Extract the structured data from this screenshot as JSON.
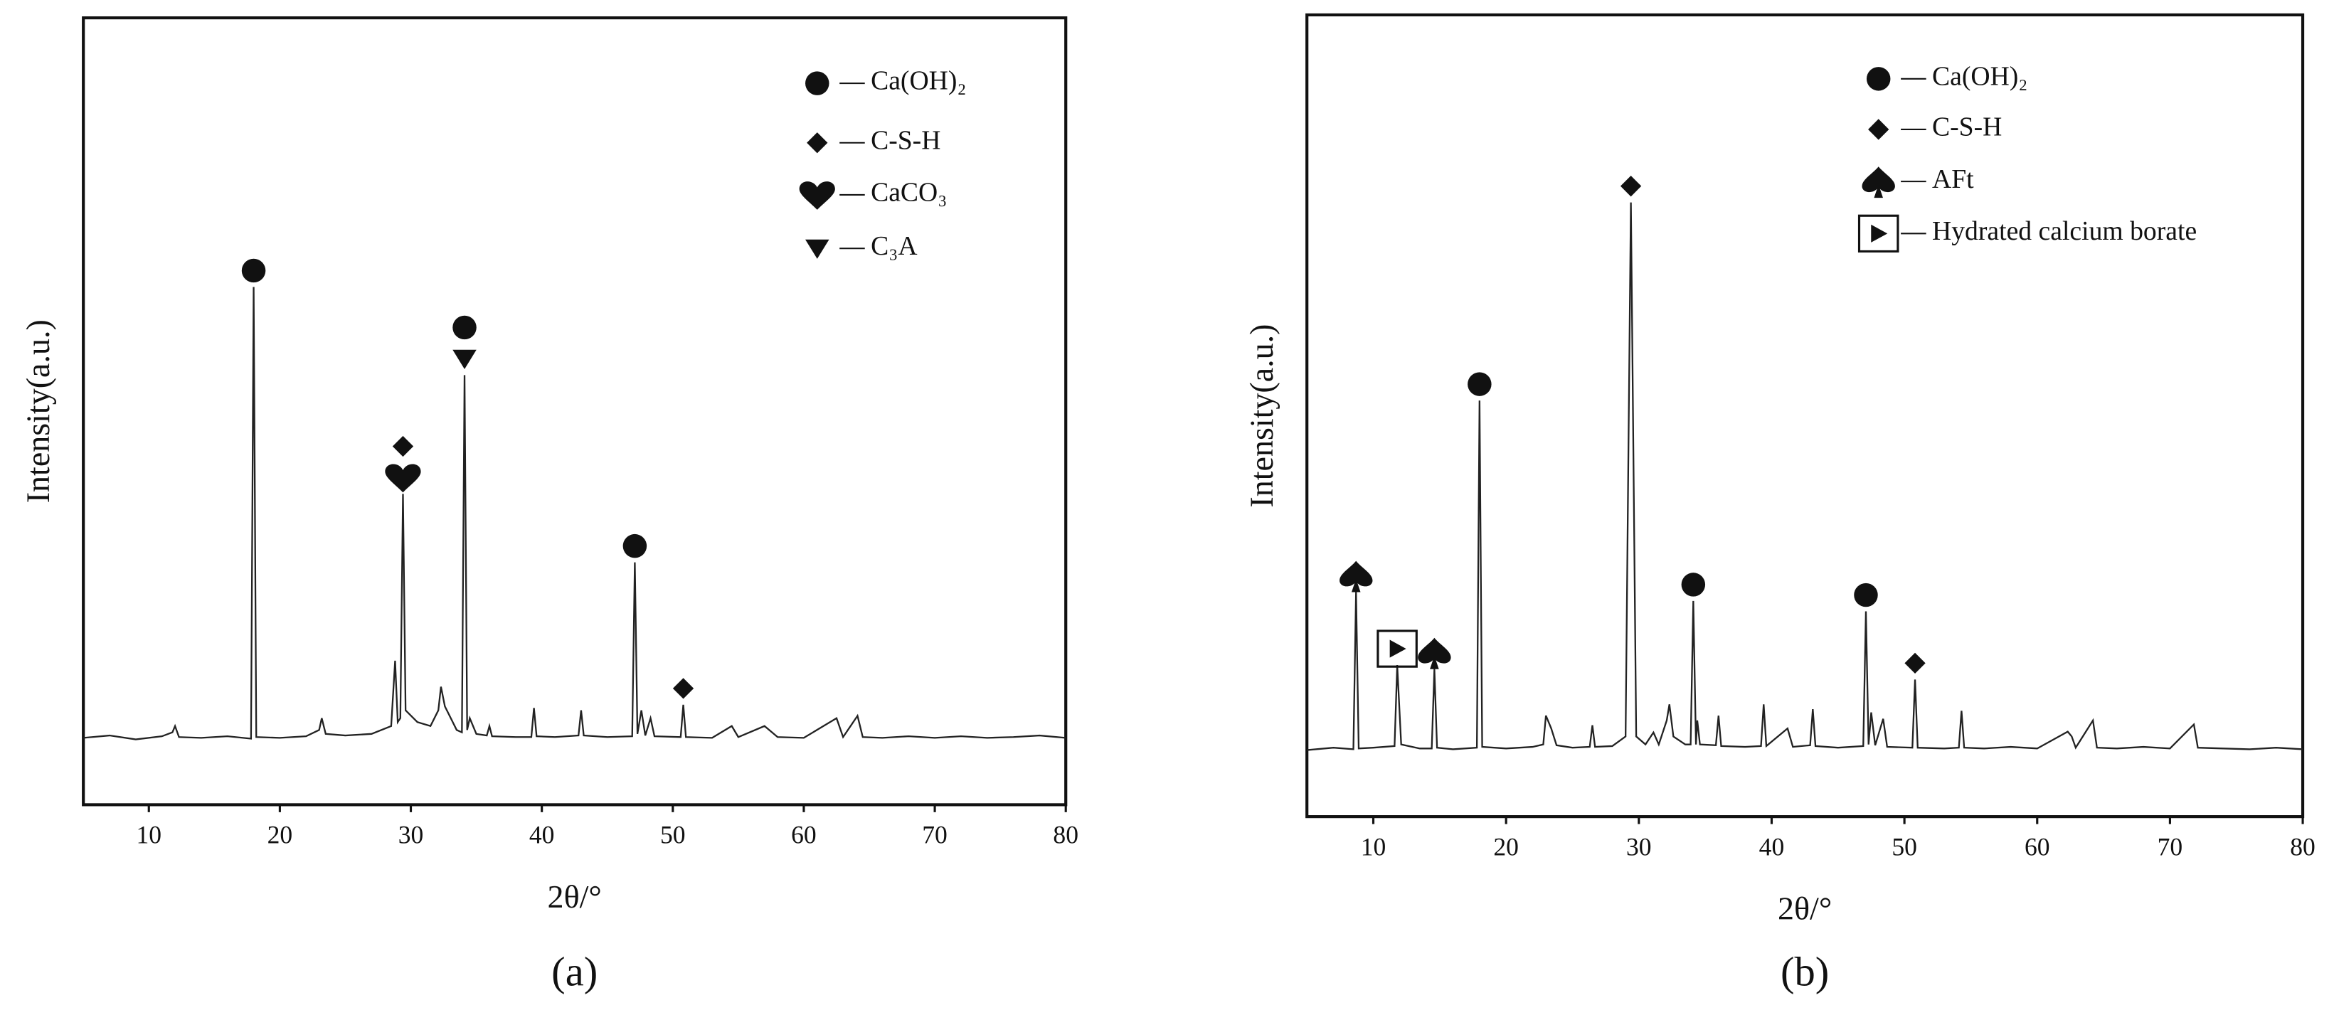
{
  "chart_data": [
    {
      "type": "line",
      "label": "(a)",
      "x_label": "2θ/°",
      "y_label": "Intensity(a.u.)",
      "color": "#222222",
      "xlim": [
        5,
        80
      ],
      "ylim": [
        0,
        100
      ],
      "xticks": [
        10,
        20,
        30,
        40,
        50,
        60,
        70,
        80
      ],
      "phases": [
        {
          "name": "Ca(OH)₂",
          "symbol": "circle"
        },
        {
          "name": "C-S-H",
          "symbol": "diamond"
        },
        {
          "name": "CaCO₃",
          "symbol": "heart"
        },
        {
          "name": "C₃A",
          "symbol": "triangle"
        }
      ],
      "markers": [
        {
          "phase": 0,
          "x": 18.0
        },
        {
          "phase": 2,
          "x": 29.4
        },
        {
          "phase": 1,
          "x": 29.4
        },
        {
          "phase": 3,
          "x": 34.1
        },
        {
          "phase": 0,
          "x": 34.1
        },
        {
          "phase": 0,
          "x": 47.1
        },
        {
          "phase": 1,
          "x": 50.8
        }
      ],
      "x": [
        5,
        7,
        9,
        11,
        11.8,
        12,
        12.3,
        14,
        16,
        17.8,
        18.0,
        18.2,
        20,
        22,
        23.0,
        23.2,
        23.5,
        25,
        27,
        28.5,
        28.8,
        29.0,
        29.2,
        29.4,
        29.6,
        30.5,
        31.5,
        32.1,
        32.3,
        32.6,
        33.5,
        33.9,
        34.1,
        34.3,
        34.5,
        35,
        35.8,
        36.0,
        36.2,
        38,
        39.2,
        39.4,
        39.6,
        41,
        42.8,
        43.0,
        43.2,
        45,
        46.9,
        47.1,
        47.3,
        47.6,
        47.9,
        48.3,
        48.6,
        50.6,
        50.8,
        51.0,
        53,
        54.5,
        55,
        57,
        58,
        60,
        62.5,
        63,
        64.1,
        64.5,
        66,
        68,
        70,
        72,
        74,
        76,
        78,
        80
      ],
      "values": [
        8.5,
        8.8,
        8.3,
        8.7,
        9.2,
        10,
        8.6,
        8.5,
        8.7,
        8.4,
        65.8,
        8.6,
        8.5,
        8.7,
        9.5,
        11,
        9,
        8.8,
        9,
        10,
        18.3,
        10.5,
        11,
        39.5,
        12,
        10.5,
        10,
        12,
        15,
        12.5,
        9.5,
        9.2,
        54.6,
        9.5,
        11,
        9,
        8.8,
        10,
        8.7,
        8.6,
        8.6,
        12.3,
        8.7,
        8.6,
        8.8,
        12,
        8.8,
        8.6,
        8.7,
        30.8,
        9,
        12,
        8.8,
        11,
        8.7,
        8.6,
        12.7,
        8.6,
        8.5,
        10,
        8.6,
        10,
        8.6,
        8.5,
        11,
        8.6,
        11.3,
        8.6,
        8.5,
        8.7,
        8.5,
        8.7,
        8.5,
        8.6,
        8.8,
        8.5
      ]
    },
    {
      "type": "line",
      "label": "(b)",
      "x_label": "2θ/°",
      "y_label": "Intensity(a.u.)",
      "color": "#222222",
      "xlim": [
        5,
        80
      ],
      "ylim": [
        0,
        100
      ],
      "xticks": [
        10,
        20,
        30,
        40,
        50,
        60,
        70,
        80
      ],
      "phases": [
        {
          "name": "Ca(OH)₂",
          "symbol": "circle"
        },
        {
          "name": "C-S-H",
          "symbol": "diamond"
        },
        {
          "name": "AFt",
          "symbol": "spade"
        },
        {
          "name": "Hydrated calcium borate",
          "symbol": "boxed-triangle"
        }
      ],
      "markers": [
        {
          "phase": 2,
          "x": 8.7
        },
        {
          "phase": 3,
          "x": 11.8
        },
        {
          "phase": 2,
          "x": 14.6
        },
        {
          "phase": 0,
          "x": 18.0
        },
        {
          "phase": 1,
          "x": 29.4
        },
        {
          "phase": 0,
          "x": 34.1
        },
        {
          "phase": 0,
          "x": 47.1
        },
        {
          "phase": 1,
          "x": 50.8
        }
      ],
      "x": [
        5,
        7,
        8.5,
        8.7,
        8.9,
        10,
        11.6,
        11.8,
        12.1,
        13.5,
        14.4,
        14.6,
        14.8,
        16,
        17.8,
        18.0,
        18.2,
        20,
        22,
        22.8,
        23.0,
        23.4,
        23.8,
        25,
        26.3,
        26.5,
        26.7,
        28,
        29.0,
        29.4,
        29.8,
        30.5,
        31.1,
        31.5,
        32.1,
        32.3,
        32.6,
        33.5,
        33.9,
        34.1,
        34.3,
        34.4,
        34.6,
        35.8,
        36.0,
        36.2,
        38,
        39.2,
        39.4,
        39.6,
        41.2,
        41.6,
        42.9,
        43.1,
        43.3,
        45,
        46.9,
        47.1,
        47.3,
        47.5,
        47.8,
        48.4,
        48.7,
        50.6,
        50.8,
        51.0,
        53,
        54.1,
        54.3,
        54.5,
        56,
        58,
        60,
        62.3,
        62.6,
        62.9,
        64.2,
        64.5,
        66,
        68,
        70,
        71.8,
        72.1,
        74,
        76,
        78,
        80
      ],
      "values": [
        8.3,
        8.6,
        8.4,
        28,
        8.5,
        8.6,
        8.8,
        18.9,
        9,
        8.5,
        8.5,
        18.4,
        8.6,
        8.4,
        8.6,
        51.9,
        8.7,
        8.5,
        8.7,
        9,
        12.6,
        11,
        8.9,
        8.6,
        8.7,
        11.4,
        8.7,
        8.8,
        10,
        76.6,
        10,
        9,
        10.5,
        9,
        12,
        14,
        10,
        9,
        9,
        26.9,
        9,
        12,
        9,
        8.9,
        12.6,
        8.8,
        8.7,
        8.8,
        14,
        8.8,
        11,
        8.7,
        8.9,
        13.4,
        8.8,
        8.6,
        8.8,
        25.6,
        9,
        13,
        8.9,
        12.2,
        8.7,
        8.6,
        17.1,
        8.6,
        8.5,
        8.6,
        13.2,
        8.6,
        8.5,
        8.7,
        8.5,
        10.6,
        10,
        8.6,
        12,
        8.6,
        8.5,
        8.7,
        8.5,
        11.5,
        8.6,
        8.5,
        8.4,
        8.6,
        8.4
      ]
    }
  ]
}
